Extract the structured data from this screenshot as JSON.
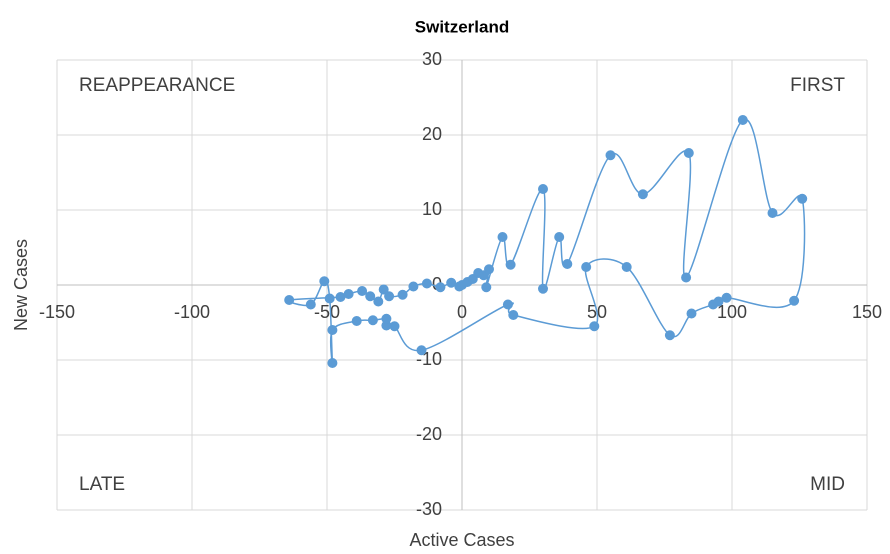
{
  "chart_data": {
    "type": "scatter",
    "title": "Switzerland",
    "x_label": "Active Cases",
    "y_label": "New Cases",
    "annotations": [
      "REAPPEARANCE",
      "FIRST",
      "LATE",
      "MID"
    ],
    "xlim": [
      -150,
      150
    ],
    "xticks": [
      -150,
      -100,
      -50,
      0,
      50,
      100,
      150
    ],
    "ylim": [
      -30,
      30
    ],
    "yticks": [
      -30,
      -20,
      -10,
      0,
      10,
      20,
      30
    ],
    "grid": true,
    "smooth_line": true,
    "x": [
      0,
      2,
      4,
      6,
      8,
      10,
      9,
      15,
      18,
      30,
      30,
      36,
      39,
      55,
      67,
      84,
      83,
      104,
      115,
      126,
      123,
      98,
      95,
      93,
      85,
      77,
      61,
      46,
      49,
      19,
      17,
      -15,
      -25,
      -28,
      -28,
      -33,
      -39,
      -48,
      -48,
      -49,
      -51,
      -56,
      -64,
      -45,
      -42,
      -37,
      -34,
      -31,
      -29,
      -27,
      -22,
      -18,
      -13,
      -8,
      -4,
      -1
    ],
    "series": [
      {
        "color": "#5b9bd5",
        "values": [
          0,
          0.4,
          0.8,
          1.6,
          1.3,
          2.1,
          -0.3,
          6.4,
          2.7,
          12.8,
          -0.5,
          6.4,
          2.8,
          17.3,
          12.1,
          17.6,
          1,
          22,
          9.6,
          11.5,
          -2.1,
          -1.7,
          -2.2,
          -2.6,
          -3.8,
          -6.7,
          2.4,
          2.4,
          -5.5,
          -4,
          -2.6,
          -8.7,
          -5.5,
          -5.4,
          -4.5,
          -4.7,
          -4.8,
          -6,
          -10.4,
          -1.8,
          0.5,
          -2.6,
          -2,
          -1.6,
          -1.2,
          -0.8,
          -1.5,
          -2.2,
          -0.6,
          -1.5,
          -1.3,
          -0.2,
          0.2,
          -0.3,
          0.3,
          -0.2
        ]
      }
    ]
  }
}
